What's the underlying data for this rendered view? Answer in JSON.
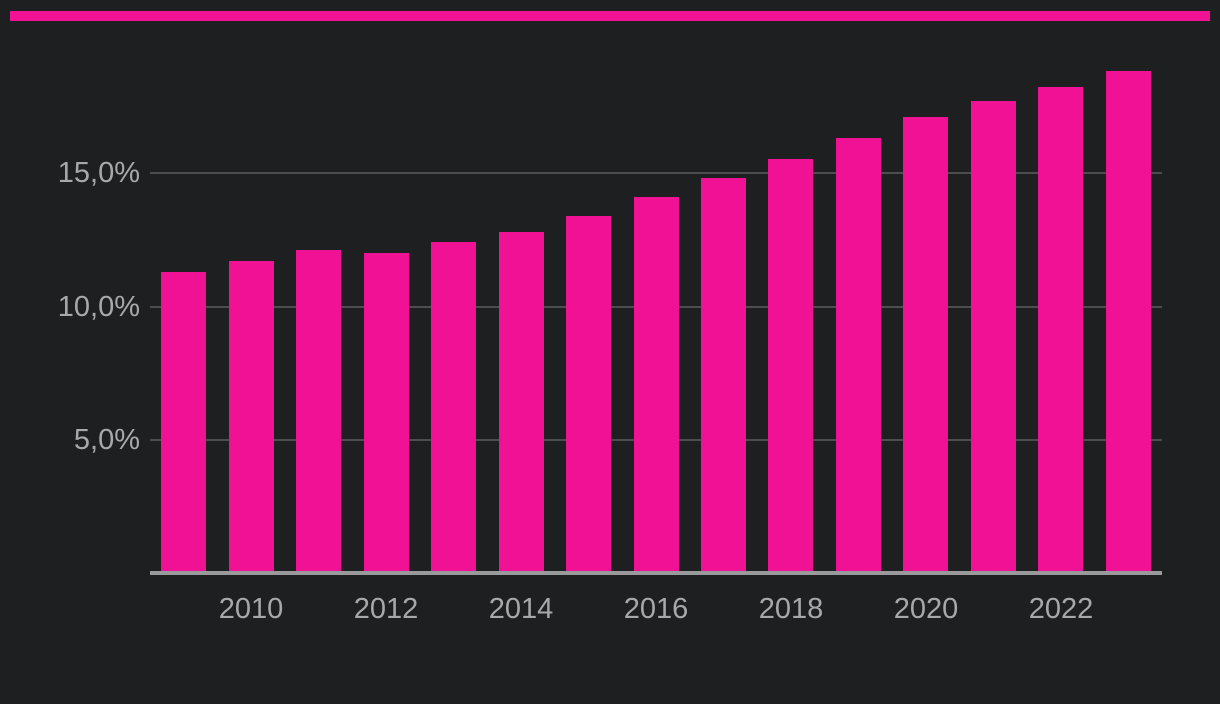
{
  "page": {
    "background_color": "#1E1F21",
    "accent_color": "#F01194",
    "gridline_color": "#4D4D50",
    "axis_line_color": "#9A9A9C",
    "tick_text_color": "#A8A8AB"
  },
  "chart_data": {
    "type": "bar",
    "title": "",
    "xlabel": "",
    "ylabel": "",
    "categories": [
      "2009",
      "2010",
      "2011",
      "2012",
      "2013",
      "2014",
      "2015",
      "2016",
      "2017",
      "2018",
      "2019",
      "2020",
      "2021",
      "2022",
      "2023"
    ],
    "values": [
      11.3,
      11.7,
      12.1,
      12.0,
      12.4,
      12.8,
      13.4,
      14.1,
      14.8,
      15.5,
      16.3,
      17.1,
      17.7,
      18.2,
      18.8
    ],
    "unit": "%",
    "number_format": "de-DE",
    "bar_color": "#F01194",
    "ylim": [
      0,
      20
    ],
    "yticks": [
      {
        "value": 5,
        "label": "5,0%"
      },
      {
        "value": 10,
        "label": "10,0%"
      },
      {
        "value": 15,
        "label": "15,0%"
      }
    ],
    "xticks": [
      {
        "category": "2010",
        "label": "2010"
      },
      {
        "category": "2012",
        "label": "2012"
      },
      {
        "category": "2014",
        "label": "2014"
      },
      {
        "category": "2016",
        "label": "2016"
      },
      {
        "category": "2018",
        "label": "2018"
      },
      {
        "category": "2020",
        "label": "2020"
      },
      {
        "category": "2022",
        "label": "2022"
      }
    ],
    "grid": "horizontal",
    "legend": "none"
  }
}
